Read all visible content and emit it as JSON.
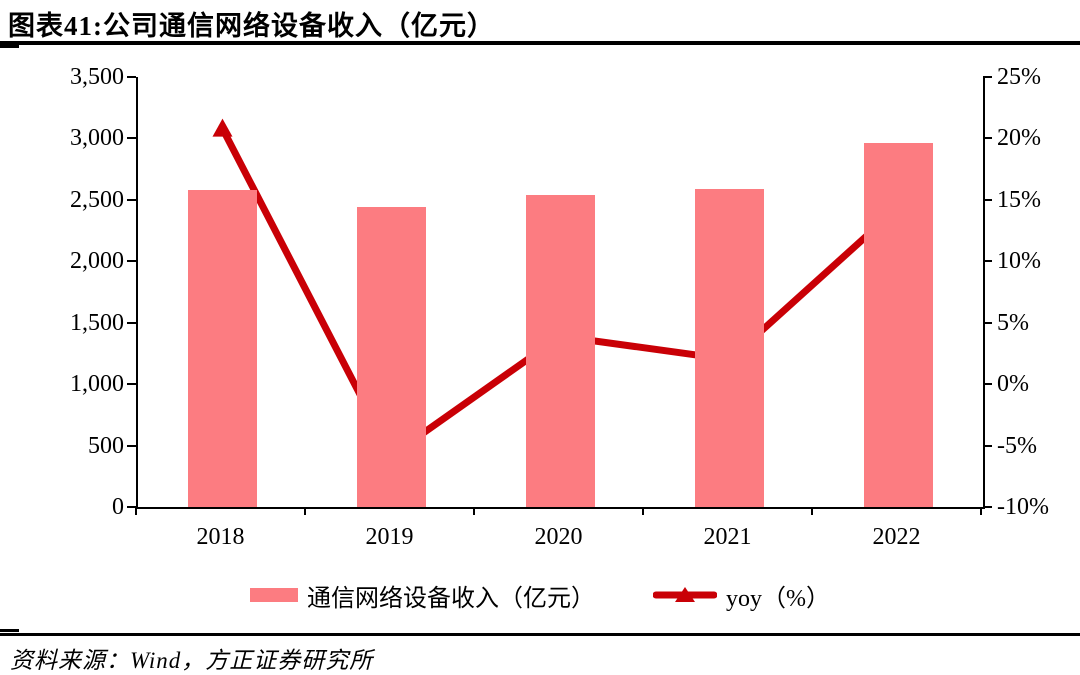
{
  "title": "图表41:公司通信网络设备收入（亿元）",
  "source": "资料来源：Wind，方正证券研究所",
  "legend": {
    "revenue_label": "通信网络设备收入（亿元）",
    "yoy_label": "yoy（%）"
  },
  "colors": {
    "bar": "#FC7C81",
    "line": "#C90006",
    "axis": "#000000",
    "text": "#000000"
  },
  "chart_data": {
    "type": "bar",
    "subtype": "bar+line combo",
    "title": "图表41:公司通信网络设备收入（亿元）",
    "categories": [
      "2018",
      "2019",
      "2020",
      "2021",
      "2022"
    ],
    "series": [
      {
        "name": "通信网络设备收入（亿元）",
        "type": "bar",
        "axis": "left",
        "values": [
          2580,
          2440,
          2540,
          2585,
          2960
        ]
      },
      {
        "name": "yoy（%）",
        "type": "line",
        "marker": "triangle",
        "axis": "right",
        "values": [
          20.8,
          -5.8,
          3.9,
          2.0,
          14.4
        ]
      }
    ],
    "left_axis": {
      "min": 0,
      "max": 3500,
      "step": 500,
      "tick_labels": [
        "0",
        "500",
        "1,000",
        "1,500",
        "2,000",
        "2,500",
        "3,000",
        "3,500"
      ]
    },
    "right_axis": {
      "min": -10,
      "max": 25,
      "step": 5,
      "tick_labels": [
        "-10%",
        "-5%",
        "0%",
        "5%",
        "10%",
        "15%",
        "20%",
        "25%"
      ]
    },
    "grid": false,
    "legend_position": "bottom"
  }
}
